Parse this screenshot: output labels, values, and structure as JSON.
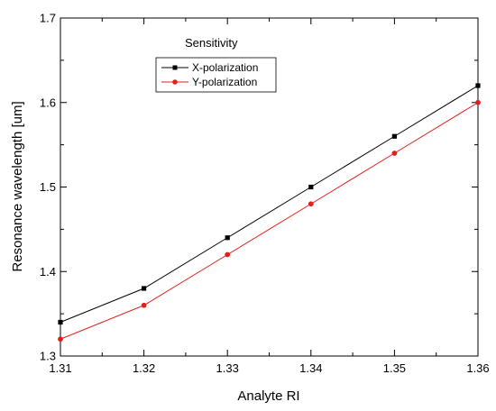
{
  "chart_data": {
    "type": "line",
    "xlabel": "Analyte RI",
    "ylabel": "Resonance wavelength [um]",
    "xlim": [
      1.31,
      1.36
    ],
    "ylim": [
      1.3,
      1.7
    ],
    "x_ticks": [
      "1.31",
      "1.32",
      "1.33",
      "1.34",
      "1.35",
      "1.36"
    ],
    "y_ticks": [
      "1.3",
      "1.4",
      "1.5",
      "1.6",
      "1.7"
    ],
    "x": [
      1.31,
      1.32,
      1.33,
      1.34,
      1.35,
      1.36
    ],
    "series": [
      {
        "name": "X-polarization",
        "values": [
          1.34,
          1.38,
          1.44,
          1.5,
          1.56,
          1.62
        ],
        "color": "#000000",
        "marker": "square"
      },
      {
        "name": "Y-polarization",
        "values": [
          1.32,
          1.36,
          1.42,
          1.48,
          1.54,
          1.6
        ],
        "color": "#e0201b",
        "marker": "circle"
      }
    ],
    "legend": {
      "title": "Sensitivity",
      "placement": "top-center"
    },
    "grid": false
  }
}
